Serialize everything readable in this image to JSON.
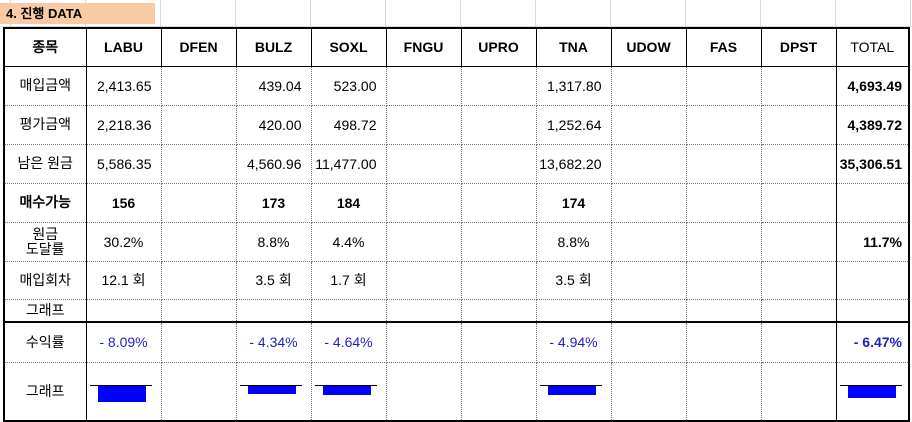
{
  "title": "4. 진행 DATA",
  "table": {
    "header": [
      "종목",
      "LABU",
      "DFEN",
      "BULZ",
      "SOXL",
      "FNGU",
      "UPRO",
      "TNA",
      "UDOW",
      "FAS",
      "DPST",
      "TOTAL"
    ],
    "rows": [
      {
        "label": "매입금액",
        "cells": [
          "2,413.65",
          null,
          "439.04",
          "523.00",
          null,
          null,
          "1,317.80",
          null,
          null,
          null,
          "4,693.49"
        ]
      },
      {
        "label": "평가금액",
        "cells": [
          "2,218.36",
          null,
          "420.00",
          "498.72",
          null,
          null,
          "1,252.64",
          null,
          null,
          null,
          "4,389.72"
        ]
      },
      {
        "label": "남은 원금",
        "cells": [
          "5,586.35",
          null,
          "4,560.96",
          "11,477.00",
          null,
          null,
          "13,682.20",
          null,
          null,
          null,
          "35,306.51"
        ]
      },
      {
        "label": "매수가능",
        "cells": [
          "156",
          null,
          "173",
          "184",
          null,
          null,
          "174",
          null,
          null,
          null,
          null
        ]
      },
      {
        "label": "원금\n도달률",
        "cells": [
          {
            "value": 30.2,
            "label": "30.2%"
          },
          null,
          {
            "value": 8.8,
            "label": "8.8%"
          },
          {
            "value": 4.4,
            "label": "4.4%"
          },
          null,
          null,
          {
            "value": 8.8,
            "label": "8.8%"
          },
          null,
          null,
          null,
          {
            "value": 11.7,
            "label": "11.7%"
          }
        ]
      },
      {
        "label": "매입회차",
        "cells": [
          "12.1 회",
          null,
          "3.5 회",
          "1.7 회",
          null,
          null,
          "3.5 회",
          null,
          null,
          null,
          null
        ]
      },
      {
        "label": "그래프"
      },
      {
        "label": "수익률",
        "cells": [
          {
            "value": -8.09,
            "label": "- 8.09%"
          },
          null,
          {
            "value": -4.34,
            "label": "- 4.34%"
          },
          {
            "value": -4.64,
            "label": "- 4.64%"
          },
          null,
          null,
          {
            "value": -4.94,
            "label": "- 4.94%"
          },
          null,
          null,
          null,
          {
            "value": -6.47,
            "label": "- 6.47%"
          }
        ]
      },
      {
        "label": "그래프"
      }
    ]
  }
}
